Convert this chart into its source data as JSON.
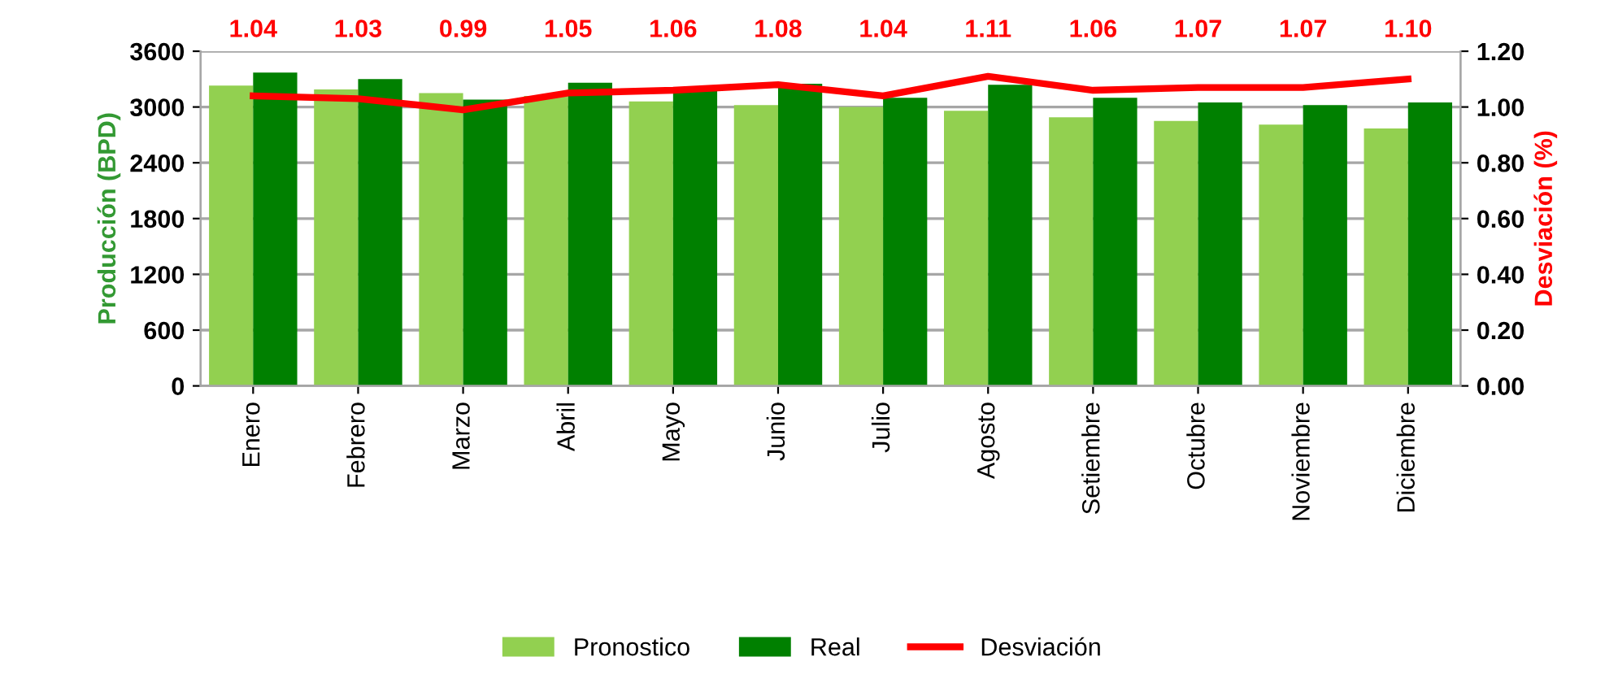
{
  "chart_data": {
    "type": "bar",
    "ylabel": "Producción (BPD)",
    "y2label": "Desviación (%)",
    "categories": [
      "Enero",
      "Febrero",
      "Marzo",
      "Abril",
      "Mayo",
      "Junio",
      "Julio",
      "Agosto",
      "Setiembre",
      "Octubre",
      "Noviembre",
      "Diciembre"
    ],
    "series": [
      {
        "name": "Pronostico",
        "color": "#92d050",
        "values": [
          3230,
          3190,
          3150,
          3120,
          3060,
          3020,
          3000,
          2960,
          2890,
          2850,
          2810,
          2770
        ]
      },
      {
        "name": "Real",
        "color": "#008000",
        "values": [
          3370,
          3300,
          3080,
          3260,
          3190,
          3250,
          3100,
          3240,
          3100,
          3050,
          3020,
          3050
        ]
      },
      {
        "name": "Desviación",
        "type": "line",
        "axis": "y2",
        "color": "#ff0000",
        "values": [
          1.04,
          1.03,
          0.99,
          1.05,
          1.06,
          1.08,
          1.04,
          1.11,
          1.06,
          1.07,
          1.07,
          1.1
        ],
        "value_labels": [
          "1.04",
          "1.03",
          "0.99",
          "1.05",
          "1.06",
          "1.08",
          "1.04",
          "1.11",
          "1.06",
          "1.07",
          "1.07",
          "1.10"
        ]
      }
    ],
    "ylim": [
      0,
      3600
    ],
    "yticks": [
      0,
      600,
      1200,
      1800,
      2400,
      3000,
      3600
    ],
    "y2lim": [
      0,
      1.2
    ],
    "y2ticks": [
      {
        "value": 0,
        "label": "0.00"
      },
      {
        "value": 0.2,
        "label": "0.20"
      },
      {
        "value": 0.4,
        "label": "0.40"
      },
      {
        "value": 0.6,
        "label": "0.60"
      },
      {
        "value": 0.8,
        "label": "0.80"
      },
      {
        "value": 1.0,
        "label": "1.00"
      },
      {
        "value": 1.2,
        "label": "1.20"
      }
    ],
    "grid": "y",
    "legend": "bottom",
    "marker": "none",
    "line_style": "solid"
  }
}
